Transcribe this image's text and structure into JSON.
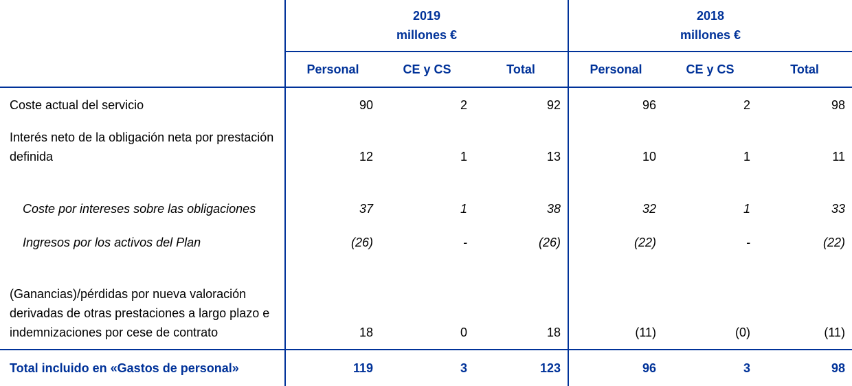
{
  "table": {
    "header": {
      "groups": [
        {
          "year": "2019",
          "unit": "millones €"
        },
        {
          "year": "2018",
          "unit": "millones €"
        }
      ],
      "columns": [
        "Personal",
        "CE y CS",
        "Total",
        "Personal",
        "CE y CS",
        "Total"
      ]
    },
    "rows": [
      {
        "label": "Coste actual del servicio",
        "values": [
          "90",
          "2",
          "92",
          "96",
          "2",
          "98"
        ]
      },
      {
        "label": "Interés neto de la obligación neta por prestación definida",
        "values": [
          "12",
          "1",
          "13",
          "10",
          "1",
          "11"
        ]
      },
      {
        "label": "Coste por intereses sobre las obligaciones",
        "values": [
          "37",
          "1",
          "38",
          "32",
          "1",
          "33"
        ]
      },
      {
        "label": "Ingresos por los activos del Plan",
        "values": [
          "(26)",
          "-",
          "(26)",
          "(22)",
          "-",
          "(22)"
        ]
      },
      {
        "label": "(Ganancias)/pérdidas por nueva valoración derivadas de otras prestaciones a largo plazo e indemnizaciones por cese de contrato",
        "values": [
          "18",
          "0",
          "18",
          "(11)",
          "(0)",
          "(11)"
        ]
      }
    ],
    "total": {
      "label": "Total incluido en «Gastos de personal»",
      "values": [
        "119",
        "3",
        "123",
        "96",
        "3",
        "98"
      ]
    }
  }
}
